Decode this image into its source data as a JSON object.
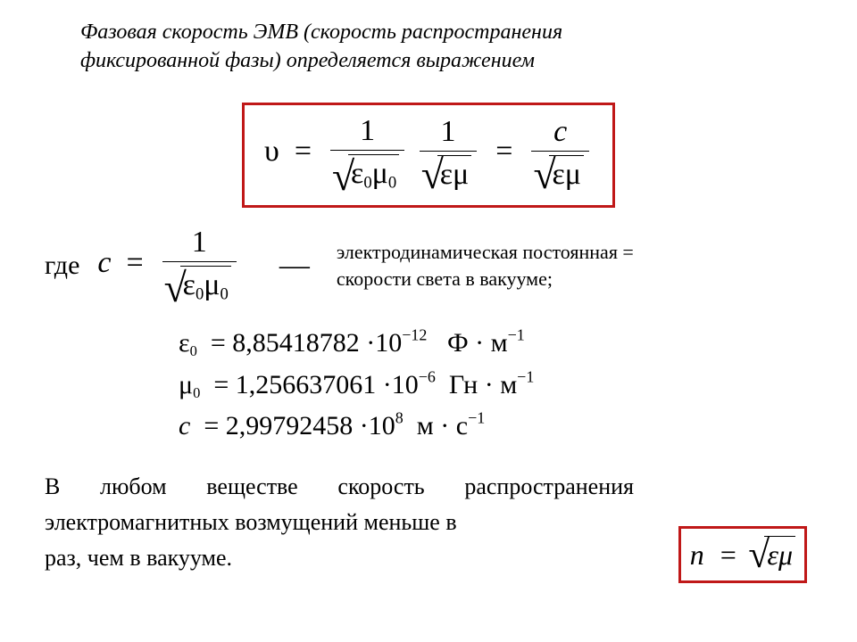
{
  "colors": {
    "box_border": "#c01818",
    "text": "#000000",
    "background": "#ffffff"
  },
  "intro": {
    "line1": "Фазовая скорость ЭМВ (скорость распространения",
    "line2": "фиксированной фазы) определяется выражением"
  },
  "main_eq": {
    "lhs": "υ",
    "frac1_num": "1",
    "frac1_den_eps": "ε",
    "frac1_den_mu": "μ",
    "frac2_num": "1",
    "frac2_den_eps": "ε",
    "frac2_den_mu": "μ",
    "frac3_num": "c",
    "frac3_den_eps": "ε",
    "frac3_den_mu": "μ",
    "sub0": "0"
  },
  "c_def": {
    "where": "где",
    "c": "c",
    "num": "1",
    "den_eps": "ε",
    "den_mu": "μ",
    "sub0": "0",
    "desc1": "электродинамическая постоянная =",
    "desc2": "скорости света в вакууме;"
  },
  "constants": {
    "eps0_sym": "ε",
    "eps0_val": "8,85418782",
    "eps0_exp": "−12",
    "eps0_unit1": "Ф",
    "eps0_unit2": "м",
    "mu0_sym": "μ",
    "mu0_val": "1,256637061",
    "mu0_exp": "−6",
    "mu0_unit1": "Гн",
    "mu0_unit2": "м",
    "c_sym": "c",
    "c_val": "2,99792458",
    "c_exp": "8",
    "c_unit1": "м",
    "c_unit2": "с",
    "sub0": "0",
    "neg1": "−1",
    "dot": "·",
    "ten": "10"
  },
  "final": {
    "l1": "В любом веществе скорость распространения",
    "l2": "электромагнитных возмущений меньше в",
    "l3": "раз, чем в вакууме."
  },
  "n_eq": {
    "n": "n",
    "eps": "ε",
    "mu": "μ"
  }
}
